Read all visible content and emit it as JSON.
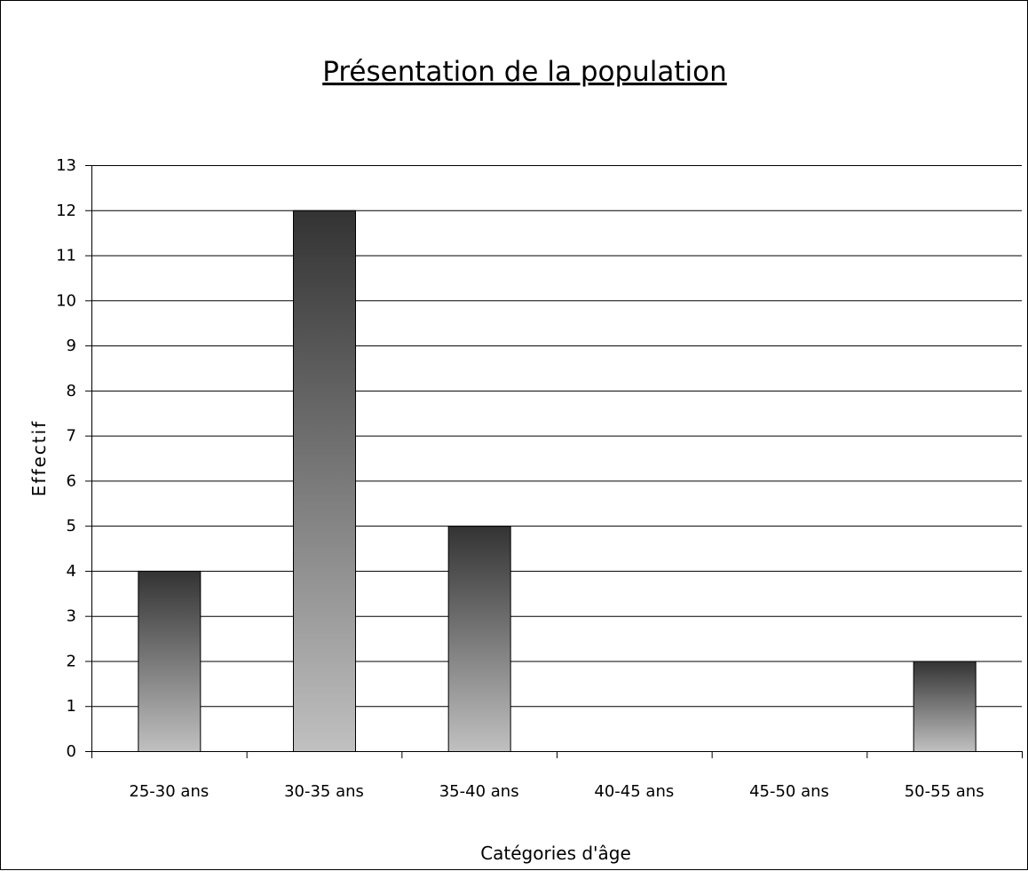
{
  "chart_data": {
    "type": "bar",
    "title": "Présentation de la population",
    "xlabel": "Catégories d'âge",
    "ylabel": "Effectif",
    "categories": [
      "25-30 ans",
      "30-35 ans",
      "35-40 ans",
      "40-45 ans",
      "45-50 ans",
      "50-55 ans"
    ],
    "values": [
      4,
      12,
      5,
      0,
      0,
      2
    ],
    "ylim": [
      0,
      13
    ],
    "yticks": [
      0,
      1,
      2,
      3,
      4,
      5,
      6,
      7,
      8,
      9,
      10,
      11,
      12,
      13
    ],
    "grid": true,
    "legend": "none",
    "colors": {
      "bar_top": "#333333",
      "bar_bottom": "#c0c0c0",
      "bar_stroke": "#000000",
      "grid": "#000000",
      "background": "#ffffff"
    }
  }
}
